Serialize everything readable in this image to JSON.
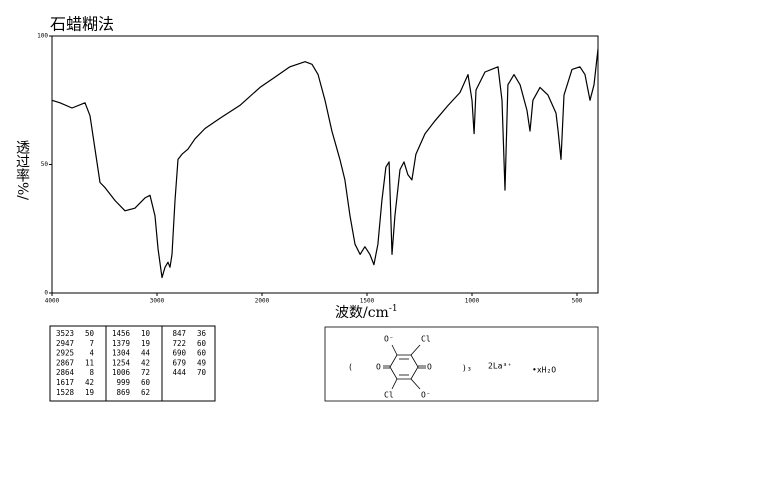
{
  "chart_data": {
    "type": "line",
    "title": "石蜡糊法",
    "ylabel": "透过率%/",
    "xlabel": "波数/cm",
    "xlabel_sup": "-1",
    "color": "#000000",
    "xlim": [
      4000,
      400
    ],
    "xscale": {
      "break": 2000,
      "factor": 2
    },
    "xticks": [
      4000,
      3000,
      2000,
      1500,
      1000,
      500
    ],
    "ylim": [
      0,
      100
    ],
    "yticks": [
      0,
      50,
      100
    ],
    "grid": false,
    "x": [
      4000,
      3924,
      3810,
      3686,
      3638,
      3590,
      3543,
      3495,
      3400,
      3305,
      3210,
      3114,
      3067,
      3019,
      2990,
      2952,
      2924,
      2895,
      2876,
      2857,
      2829,
      2800,
      2762,
      2705,
      2638,
      2543,
      2400,
      2210,
      2019,
      1938,
      1867,
      1795,
      1762,
      1733,
      1700,
      1667,
      1629,
      1605,
      1581,
      1557,
      1533,
      1510,
      1486,
      1467,
      1448,
      1429,
      1410,
      1395,
      1381,
      1367,
      1343,
      1324,
      1305,
      1286,
      1267,
      1224,
      1176,
      1114,
      1057,
      1019,
      1000,
      990,
      981,
      938,
      876,
      857,
      843,
      829,
      800,
      771,
      738,
      724,
      710,
      676,
      638,
      600,
      590,
      576,
      562,
      524,
      486,
      462,
      438,
      419,
      400
    ],
    "values": [
      75,
      74,
      72,
      74,
      69,
      56,
      43,
      41,
      36,
      32,
      33,
      37,
      38,
      30,
      17,
      6,
      10,
      12,
      10,
      15,
      36,
      52,
      54,
      56,
      60,
      64,
      68,
      73,
      80,
      84,
      88,
      90,
      89,
      85,
      75,
      63,
      52,
      44,
      30,
      19,
      15,
      18,
      15,
      11,
      19,
      36,
      49,
      51,
      15,
      30,
      48,
      51,
      46,
      44,
      54,
      62,
      67,
      73,
      78,
      85,
      75,
      62,
      79,
      86,
      88,
      75,
      40,
      81,
      85,
      81,
      71,
      63,
      75,
      80,
      77,
      70,
      63,
      52,
      77,
      87,
      88,
      85,
      75,
      81,
      95
    ],
    "peak_table": [
      [
        [
          3523,
          50
        ],
        [
          2947,
          7
        ],
        [
          2925,
          4
        ],
        [
          2867,
          11
        ],
        [
          2864,
          8
        ],
        [
          1617,
          42
        ],
        [
          1528,
          19
        ]
      ],
      [
        [
          1456,
          10
        ],
        [
          1379,
          19
        ],
        [
          1304,
          44
        ],
        [
          1254,
          42
        ],
        [
          1006,
          72
        ],
        [
          999,
          60
        ],
        [
          869,
          62
        ]
      ],
      [
        [
          847,
          36
        ],
        [
          722,
          60
        ],
        [
          690,
          60
        ],
        [
          679,
          49
        ],
        [
          444,
          70
        ]
      ]
    ],
    "structure": {
      "open": "(",
      "o_top": "O⁻",
      "cl_top": "Cl",
      "o_left": "O",
      "o_right": "O",
      "cl_bottom": "Cl",
      "o_bottom": "O⁻",
      "close": ")₃",
      "cation": "2La³⁺",
      "hydrate": "•xH₂O"
    }
  }
}
